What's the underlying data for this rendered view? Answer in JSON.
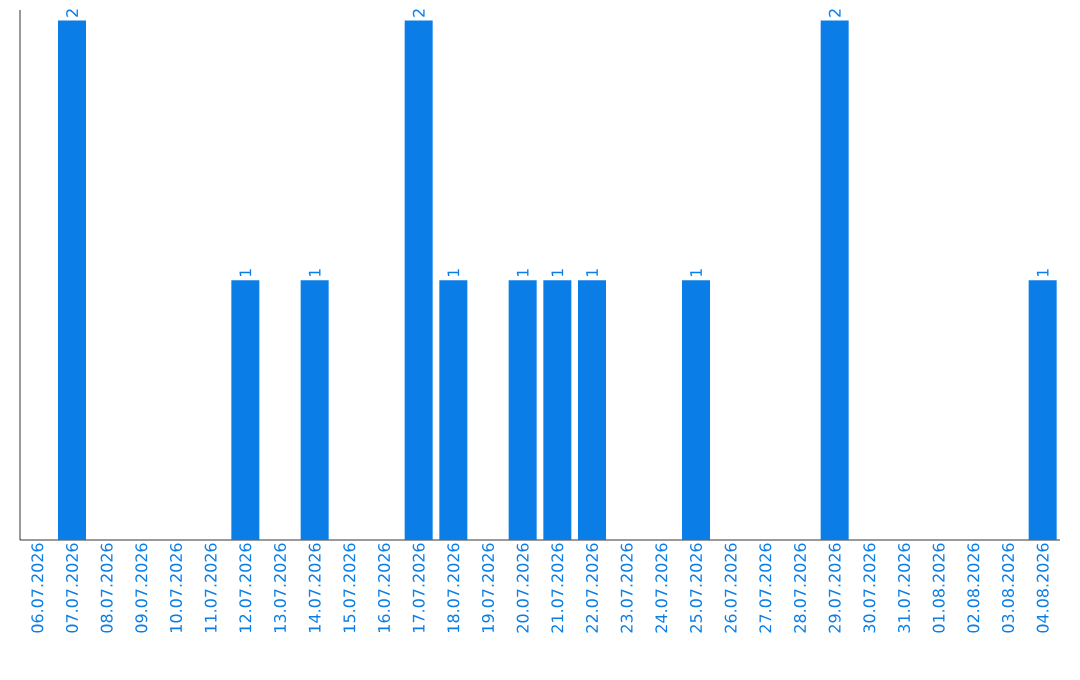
{
  "chart_data": {
    "type": "bar",
    "color": "#0a7ee6",
    "tick_labels": "x",
    "categories": [
      "06.07.2026",
      "07.07.2026",
      "08.07.2026",
      "09.07.2026",
      "10.07.2026",
      "11.07.2026",
      "12.07.2026",
      "13.07.2026",
      "14.07.2026",
      "15.07.2026",
      "16.07.2026",
      "17.07.2026",
      "18.07.2026",
      "19.07.2026",
      "20.07.2026",
      "21.07.2026",
      "22.07.2026",
      "23.07.2026",
      "24.07.2026",
      "25.07.2026",
      "26.07.2026",
      "27.07.2026",
      "28.07.2026",
      "29.07.2026",
      "30.07.2026",
      "31.07.2026",
      "01.08.2026",
      "02.08.2026",
      "03.08.2026",
      "04.08.2026"
    ],
    "values": [
      0,
      2,
      0,
      0,
      0,
      0,
      1,
      0,
      1,
      0,
      0,
      2,
      1,
      0,
      1,
      1,
      1,
      0,
      0,
      1,
      0,
      0,
      0,
      2,
      0,
      0,
      0,
      0,
      0,
      1
    ],
    "value_labels": [
      null,
      "2",
      null,
      null,
      null,
      null,
      "1",
      null,
      "1",
      null,
      null,
      "2",
      "1",
      null,
      "1",
      "1",
      "1",
      null,
      null,
      "1",
      null,
      null,
      null,
      "2",
      null,
      null,
      null,
      null,
      null,
      "1"
    ]
  }
}
